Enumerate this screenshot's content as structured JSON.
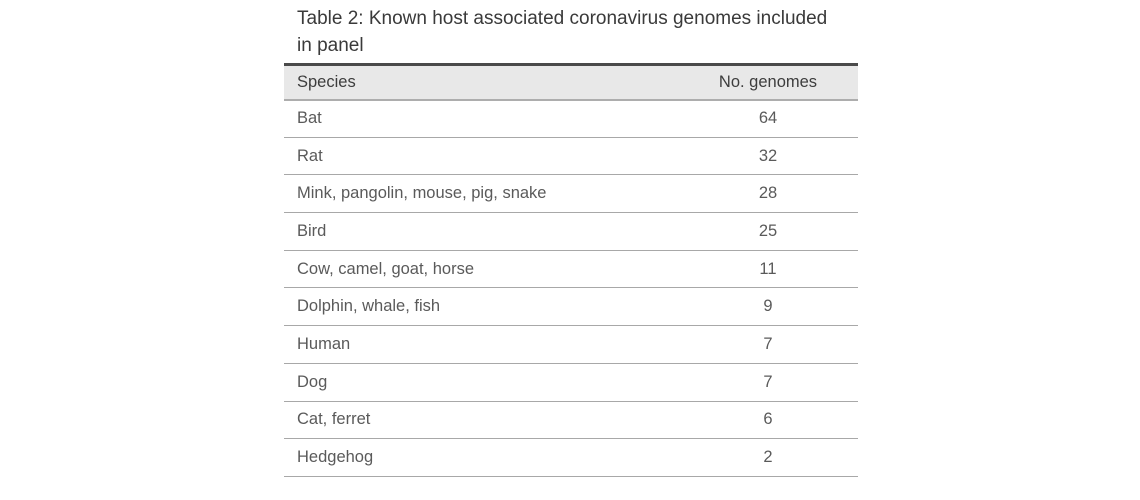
{
  "caption": "Table 2: Known host associated coronavirus genomes included in panel",
  "table": {
    "columns": [
      {
        "key": "species",
        "label": "Species"
      },
      {
        "key": "genomes",
        "label": "No. genomes"
      }
    ],
    "rows": [
      {
        "species": "Bat",
        "genomes": "64"
      },
      {
        "species": "Rat",
        "genomes": "32"
      },
      {
        "species": "Mink, pangolin, mouse, pig, snake",
        "genomes": "28"
      },
      {
        "species": "Bird",
        "genomes": "25"
      },
      {
        "species": "Cow, camel, goat, horse",
        "genomes": "11"
      },
      {
        "species": "Dolphin, whale, fish",
        "genomes": "9"
      },
      {
        "species": "Human",
        "genomes": "7"
      },
      {
        "species": "Dog",
        "genomes": "7"
      },
      {
        "species": "Cat, ferret",
        "genomes": "6"
      },
      {
        "species": "Hedgehog",
        "genomes": "2"
      }
    ]
  },
  "colors": {
    "page_background": "#ffffff",
    "caption_text": "#3a3a3a",
    "header_background": "#e8e8e8",
    "header_text": "#3d3d3d",
    "body_text": "#5a5a5a",
    "table_top_border": "#4a4a4a",
    "header_bottom_border": "#adadad",
    "row_border": "#a8a8a8"
  }
}
